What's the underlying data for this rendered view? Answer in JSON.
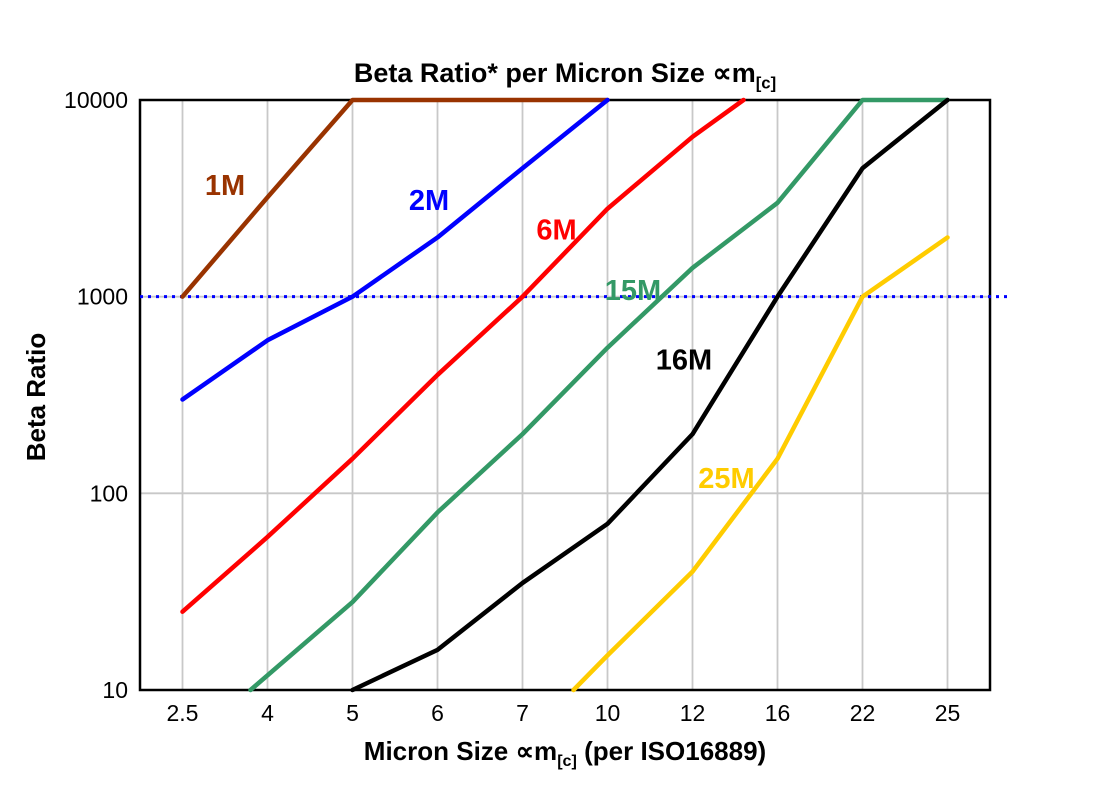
{
  "title": {
    "prefix": "Beta Ratio* per Micron Size ",
    "symbol": "∝m",
    "subscript": "[c]"
  },
  "axes": {
    "y_label": "Beta Ratio",
    "x_label_prefix": "Micron Size ",
    "x_label_symbol": "∝m",
    "x_label_subscript": "[c]",
    "x_label_suffix": " (per ISO16889)",
    "y_ticks": [
      "10",
      "100",
      "1000",
      "10000"
    ],
    "x_ticks": [
      "2.5",
      "4",
      "5",
      "6",
      "7",
      "10",
      "12",
      "16",
      "22",
      "25"
    ]
  },
  "colors": {
    "grid": "#c8c8c8",
    "frame": "#000000",
    "reference_line": "#0000ff",
    "background": "#ffffff"
  },
  "chart_data": {
    "type": "line",
    "title": "Beta Ratio* per Micron Size ∝m[c]",
    "xlabel": "Micron Size ∝m[c] (per ISO16889)",
    "ylabel": "Beta Ratio",
    "x_axis": {
      "scale": "categorical",
      "categories": [
        2.5,
        4,
        5,
        6,
        7,
        10,
        12,
        16,
        22,
        25
      ]
    },
    "y_axis": {
      "scale": "log",
      "range": [
        10,
        10000
      ],
      "ticks": [
        10,
        100,
        1000,
        10000
      ]
    },
    "grid": true,
    "gridline_values_y": [
      100,
      1000
    ],
    "legend_position": "inline-labels",
    "reference_line": {
      "y": 1000,
      "style": "dotted",
      "color": "#0000ff"
    },
    "series": [
      {
        "name": "1M",
        "color": "#993300",
        "label": {
          "xi": 0.5,
          "y": 3700
        },
        "points": [
          {
            "x": 2.5,
            "xi": 0,
            "y": 1000
          },
          {
            "x": 4,
            "xi": 1,
            "y": 3200
          },
          {
            "x": 5,
            "xi": 2,
            "y": 10000
          },
          {
            "x": 10,
            "xi": 5,
            "y": 10000
          }
        ]
      },
      {
        "name": "2M",
        "color": "#0000ff",
        "label": {
          "xi": 2.9,
          "y": 3100
        },
        "points": [
          {
            "x": 2.5,
            "xi": 0,
            "y": 300
          },
          {
            "x": 4,
            "xi": 1,
            "y": 600
          },
          {
            "x": 5,
            "xi": 2,
            "y": 1000
          },
          {
            "x": 6,
            "xi": 3,
            "y": 2000
          },
          {
            "x": 7,
            "xi": 4,
            "y": 4500
          },
          {
            "x": 10,
            "xi": 5,
            "y": 10000
          }
        ]
      },
      {
        "name": "6M",
        "color": "#ff0000",
        "label": {
          "xi": 4.4,
          "y": 2200
        },
        "points": [
          {
            "x": 2.5,
            "xi": 0,
            "y": 25
          },
          {
            "x": 4,
            "xi": 1,
            "y": 60
          },
          {
            "x": 5,
            "xi": 2,
            "y": 150
          },
          {
            "x": 6,
            "xi": 3,
            "y": 400
          },
          {
            "x": 7,
            "xi": 4,
            "y": 1000
          },
          {
            "x": 10,
            "xi": 5,
            "y": 2800
          },
          {
            "x": 12,
            "xi": 6,
            "y": 6500
          },
          {
            "x": 14,
            "xi": 6.6,
            "y": 10000
          }
        ]
      },
      {
        "name": "15M",
        "color": "#339966",
        "label": {
          "xi": 5.3,
          "y": 1080
        },
        "points": [
          {
            "x": 3.7,
            "xi": 0.8,
            "y": 10
          },
          {
            "x": 5,
            "xi": 2,
            "y": 28
          },
          {
            "x": 6,
            "xi": 3,
            "y": 80
          },
          {
            "x": 7,
            "xi": 4,
            "y": 200
          },
          {
            "x": 10,
            "xi": 5,
            "y": 550
          },
          {
            "x": 12,
            "xi": 6,
            "y": 1400
          },
          {
            "x": 16,
            "xi": 7,
            "y": 3000
          },
          {
            "x": 22,
            "xi": 8,
            "y": 10000
          },
          {
            "x": 25,
            "xi": 9,
            "y": 10000
          }
        ]
      },
      {
        "name": "16M",
        "color": "#000000",
        "label": {
          "xi": 5.9,
          "y": 480
        },
        "points": [
          {
            "x": 5,
            "xi": 2,
            "y": 10
          },
          {
            "x": 6,
            "xi": 3,
            "y": 16
          },
          {
            "x": 7,
            "xi": 4,
            "y": 35
          },
          {
            "x": 10,
            "xi": 5,
            "y": 70
          },
          {
            "x": 12,
            "xi": 6,
            "y": 200
          },
          {
            "x": 16,
            "xi": 7,
            "y": 1000
          },
          {
            "x": 22,
            "xi": 8,
            "y": 4500
          },
          {
            "x": 25,
            "xi": 9,
            "y": 10000
          }
        ]
      },
      {
        "name": "25M",
        "color": "#ffcc00",
        "label": {
          "xi": 6.4,
          "y": 120
        },
        "points": [
          {
            "x": 8.5,
            "xi": 4.6,
            "y": 10
          },
          {
            "x": 10,
            "xi": 5,
            "y": 15
          },
          {
            "x": 12,
            "xi": 6,
            "y": 40
          },
          {
            "x": 16,
            "xi": 7,
            "y": 150
          },
          {
            "x": 22,
            "xi": 8,
            "y": 1000
          },
          {
            "x": 25,
            "xi": 9,
            "y": 2000
          }
        ]
      }
    ]
  }
}
